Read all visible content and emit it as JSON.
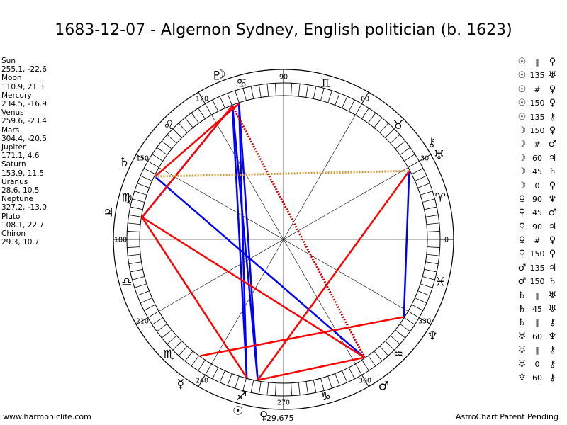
{
  "title": "1683-12-07 - Algernon Sydney, English politician (b. 1623)",
  "footer": {
    "left": "www.harmoniclife.com",
    "right": "AstroChart Patent Pending",
    "center_value": "-29,675"
  },
  "chart_data": {
    "type": "astro-wheel",
    "title": "1683-12-07 - Algernon Sydney, English politician (b. 1623)",
    "degree_labels": [
      {
        "deg": 0,
        "label": "0"
      },
      {
        "deg": 30,
        "label": "30"
      },
      {
        "deg": 60,
        "label": "60"
      },
      {
        "deg": 90,
        "label": "90"
      },
      {
        "deg": 120,
        "label": "120"
      },
      {
        "deg": 150,
        "label": "150"
      },
      {
        "deg": 180,
        "label": "180"
      },
      {
        "deg": 210,
        "label": "210"
      },
      {
        "deg": 240,
        "label": "240"
      },
      {
        "deg": 270,
        "label": "270"
      },
      {
        "deg": 300,
        "label": "300"
      },
      {
        "deg": 330,
        "label": "330"
      }
    ],
    "signs": [
      {
        "deg": 15,
        "glyph": "♈",
        "name": "aries"
      },
      {
        "deg": 45,
        "glyph": "♉",
        "name": "taurus"
      },
      {
        "deg": 75,
        "glyph": "♊",
        "name": "gemini"
      },
      {
        "deg": 105,
        "glyph": "♋",
        "name": "cancer"
      },
      {
        "deg": 135,
        "glyph": "♌",
        "name": "leo"
      },
      {
        "deg": 165,
        "glyph": "♍",
        "name": "virgo"
      },
      {
        "deg": 195,
        "glyph": "♎",
        "name": "libra"
      },
      {
        "deg": 225,
        "glyph": "♏",
        "name": "scorpio"
      },
      {
        "deg": 255,
        "glyph": "♐",
        "name": "sagittarius"
      },
      {
        "deg": 285,
        "glyph": "♑",
        "name": "capricorn"
      },
      {
        "deg": 315,
        "glyph": "♒",
        "name": "aquarius"
      },
      {
        "deg": 345,
        "glyph": "♓",
        "name": "pisces"
      }
    ],
    "planets": [
      {
        "name": "Sun",
        "glyph": "☉",
        "lon": 255.1,
        "lat": -22.6
      },
      {
        "name": "Moon",
        "glyph": "☽",
        "lon": 110.9,
        "lat": 21.3
      },
      {
        "name": "Mercury",
        "glyph": "☿",
        "lon": 234.5,
        "lat": -16.9
      },
      {
        "name": "Venus",
        "glyph": "♀",
        "lon": 259.6,
        "lat": -23.4
      },
      {
        "name": "Mars",
        "glyph": "♂",
        "lon": 304.4,
        "lat": -20.5
      },
      {
        "name": "Jupiter",
        "glyph": "♃",
        "lon": 171.1,
        "lat": 4.6
      },
      {
        "name": "Saturn",
        "glyph": "♄",
        "lon": 153.9,
        "lat": 11.5
      },
      {
        "name": "Uranus",
        "glyph": "♅",
        "lon": 28.6,
        "lat": 10.5
      },
      {
        "name": "Neptune",
        "glyph": "♆",
        "lon": 327.2,
        "lat": -13.0
      },
      {
        "name": "Pluto",
        "glyph": "♇",
        "lon": 108.1,
        "lat": 22.7
      },
      {
        "name": "Chiron",
        "glyph": "⚷",
        "lon": 29.3,
        "lat": 10.7
      }
    ],
    "aspect_lines": [
      {
        "from": "Sun",
        "to": "Moon",
        "color": "#0000ff",
        "style": "solid"
      },
      {
        "from": "Sun",
        "to": "Pluto",
        "color": "#0000ff",
        "style": "solid"
      },
      {
        "from": "Venus",
        "to": "Moon",
        "color": "#0000ff",
        "style": "solid"
      },
      {
        "from": "Venus",
        "to": "Pluto",
        "color": "#0000ff",
        "style": "solid"
      },
      {
        "from": "Jupiter",
        "to": "Moon",
        "color": "#0000ff",
        "style": "solid"
      },
      {
        "from": "Saturn",
        "to": "Mars",
        "color": "#0000ff",
        "style": "solid"
      },
      {
        "from": "Uranus",
        "to": "Neptune",
        "color": "#0000ff",
        "style": "solid"
      },
      {
        "from": "Moon",
        "to": "Jupiter",
        "color": "#ff0000",
        "style": "solid"
      },
      {
        "from": "Pluto",
        "to": "Saturn",
        "color": "#ff0000",
        "style": "solid"
      },
      {
        "from": "Sun",
        "to": "Jupiter",
        "color": "#ff0000",
        "style": "solid"
      },
      {
        "from": "Jupiter",
        "to": "Mars",
        "color": "#ff0000",
        "style": "solid"
      },
      {
        "from": "Venus",
        "to": "Uranus",
        "color": "#ff0000",
        "style": "solid"
      },
      {
        "from": "Mercury",
        "to": "Neptune",
        "color": "#ff0000",
        "style": "solid"
      },
      {
        "from": "Venus",
        "to": "Mars",
        "color": "#ff0000",
        "style": "solid"
      },
      {
        "from": "Moon",
        "to": "Mars",
        "color": "#cc0000",
        "style": "dotted"
      },
      {
        "from": "Saturn",
        "to": "Uranus",
        "color": "#cc9933",
        "style": "dotted"
      }
    ]
  },
  "planet_list": [
    {
      "name": "Sun",
      "value": "255.1, -22.6"
    },
    {
      "name": "Moon",
      "value": "110.9, 21.3"
    },
    {
      "name": "Mercury",
      "value": "234.5, -16.9"
    },
    {
      "name": "Venus",
      "value": "259.6, -23.4"
    },
    {
      "name": "Mars",
      "value": "304.4, -20.5"
    },
    {
      "name": "Jupiter",
      "value": "171.1, 4.6"
    },
    {
      "name": "Saturn",
      "value": "153.9, 11.5"
    },
    {
      "name": "Uranus",
      "value": "28.6, 10.5"
    },
    {
      "name": "Neptune",
      "value": "327.2, -13.0"
    },
    {
      "name": "Pluto",
      "value": "108.1, 22.7"
    },
    {
      "name": "Chiron",
      "value": "29.3, 10.7"
    }
  ],
  "aspect_list": [
    {
      "a": "☉",
      "m": "‖",
      "b": "♀"
    },
    {
      "a": "☉",
      "m": "135",
      "b": "♅"
    },
    {
      "a": "☉",
      "m": "#",
      "b": "♀"
    },
    {
      "a": "☉",
      "m": "150",
      "b": "♀"
    },
    {
      "a": "☉",
      "m": "135",
      "b": "⚷"
    },
    {
      "a": "☽",
      "m": "150",
      "b": "♀"
    },
    {
      "a": "☽",
      "m": "#",
      "b": "♂"
    },
    {
      "a": "☽",
      "m": "60",
      "b": "♃"
    },
    {
      "a": "☽",
      "m": "45",
      "b": "♄"
    },
    {
      "a": "☽",
      "m": "0",
      "b": "♀"
    },
    {
      "a": "♀",
      "m": "90",
      "b": "♆"
    },
    {
      "a": "♀",
      "m": "45",
      "b": "♂"
    },
    {
      "a": "♀",
      "m": "90",
      "b": "♃"
    },
    {
      "a": "♀",
      "m": "#",
      "b": "♀"
    },
    {
      "a": "♀",
      "m": "150",
      "b": "♀"
    },
    {
      "a": "♂",
      "m": "135",
      "b": "♃"
    },
    {
      "a": "♂",
      "m": "150",
      "b": "♄"
    },
    {
      "a": "♄",
      "m": "‖",
      "b": "♅"
    },
    {
      "a": "♄",
      "m": "45",
      "b": "♅"
    },
    {
      "a": "♄",
      "m": "‖",
      "b": "⚷"
    },
    {
      "a": "♅",
      "m": "60",
      "b": "♆"
    },
    {
      "a": "♅",
      "m": "‖",
      "b": "⚷"
    },
    {
      "a": "♅",
      "m": "0",
      "b": "⚷"
    },
    {
      "a": "♆",
      "m": "60",
      "b": "⚷"
    }
  ]
}
